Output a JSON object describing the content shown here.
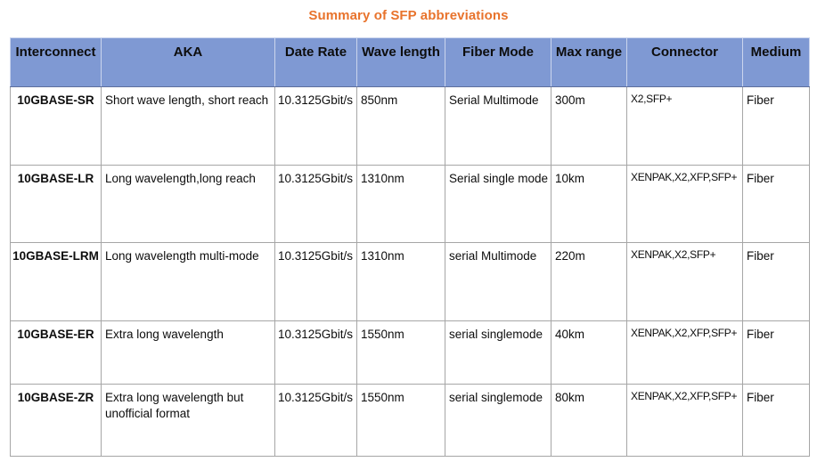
{
  "page": {
    "title": "Summary of SFP abbreviations"
  },
  "colors": {
    "title_text": "#E8732C",
    "header_fill": "#7F99D3",
    "header_text": "#0D0D0D",
    "grid_line": "#A6A6A6",
    "body_text": "#0D0D0D"
  },
  "table": {
    "columns": [
      {
        "key": "interconnect",
        "label": "Interconnect"
      },
      {
        "key": "aka",
        "label": "AKA"
      },
      {
        "key": "date_rate",
        "label": "Date Rate"
      },
      {
        "key": "wave_length",
        "label": "Wave length"
      },
      {
        "key": "fiber_mode",
        "label": "Fiber Mode"
      },
      {
        "key": "max_range",
        "label": "Max range"
      },
      {
        "key": "connector",
        "label": "Connector"
      },
      {
        "key": "medium",
        "label": "Medium"
      }
    ],
    "rows": [
      {
        "interconnect": "10GBASE-SR",
        "aka": "Short wave length, short reach",
        "date_rate": "10.3125Gbit/s",
        "wave_length": "850nm",
        "fiber_mode": "Serial Multimode",
        "max_range": "300m",
        "connector": "X2,SFP+",
        "medium": "Fiber"
      },
      {
        "interconnect": "10GBASE-LR",
        "aka": "Long wavelength,long reach",
        "date_rate": "10.3125Gbit/s",
        "wave_length": "1310nm",
        "fiber_mode": "Serial single mode",
        "max_range": "10km",
        "connector": "XENPAK,X2,XFP,SFP+",
        "medium": "Fiber"
      },
      {
        "interconnect": "10GBASE-LRM",
        "aka": "Long wavelength multi-mode",
        "date_rate": "10.3125Gbit/s",
        "wave_length": "1310nm",
        "fiber_mode": "serial Multimode",
        "max_range": "220m",
        "connector": "XENPAK,X2,SFP+",
        "medium": "Fiber"
      },
      {
        "interconnect": "10GBASE-ER",
        "aka": "Extra long wavelength",
        "date_rate": "10.3125Gbit/s",
        "wave_length": "1550nm",
        "fiber_mode": "serial singlemode",
        "max_range": "40km",
        "connector": "XENPAK,X2,XFP,SFP+",
        "medium": "Fiber"
      },
      {
        "interconnect": "10GBASE-ZR",
        "aka": "Extra long wavelength but unofficial format",
        "date_rate": "10.3125Gbit/s",
        "wave_length": "1550nm",
        "fiber_mode": "serial singlemode",
        "max_range": "80km",
        "connector": "XENPAK,X2,XFP,SFP+",
        "medium": "Fiber"
      }
    ]
  }
}
